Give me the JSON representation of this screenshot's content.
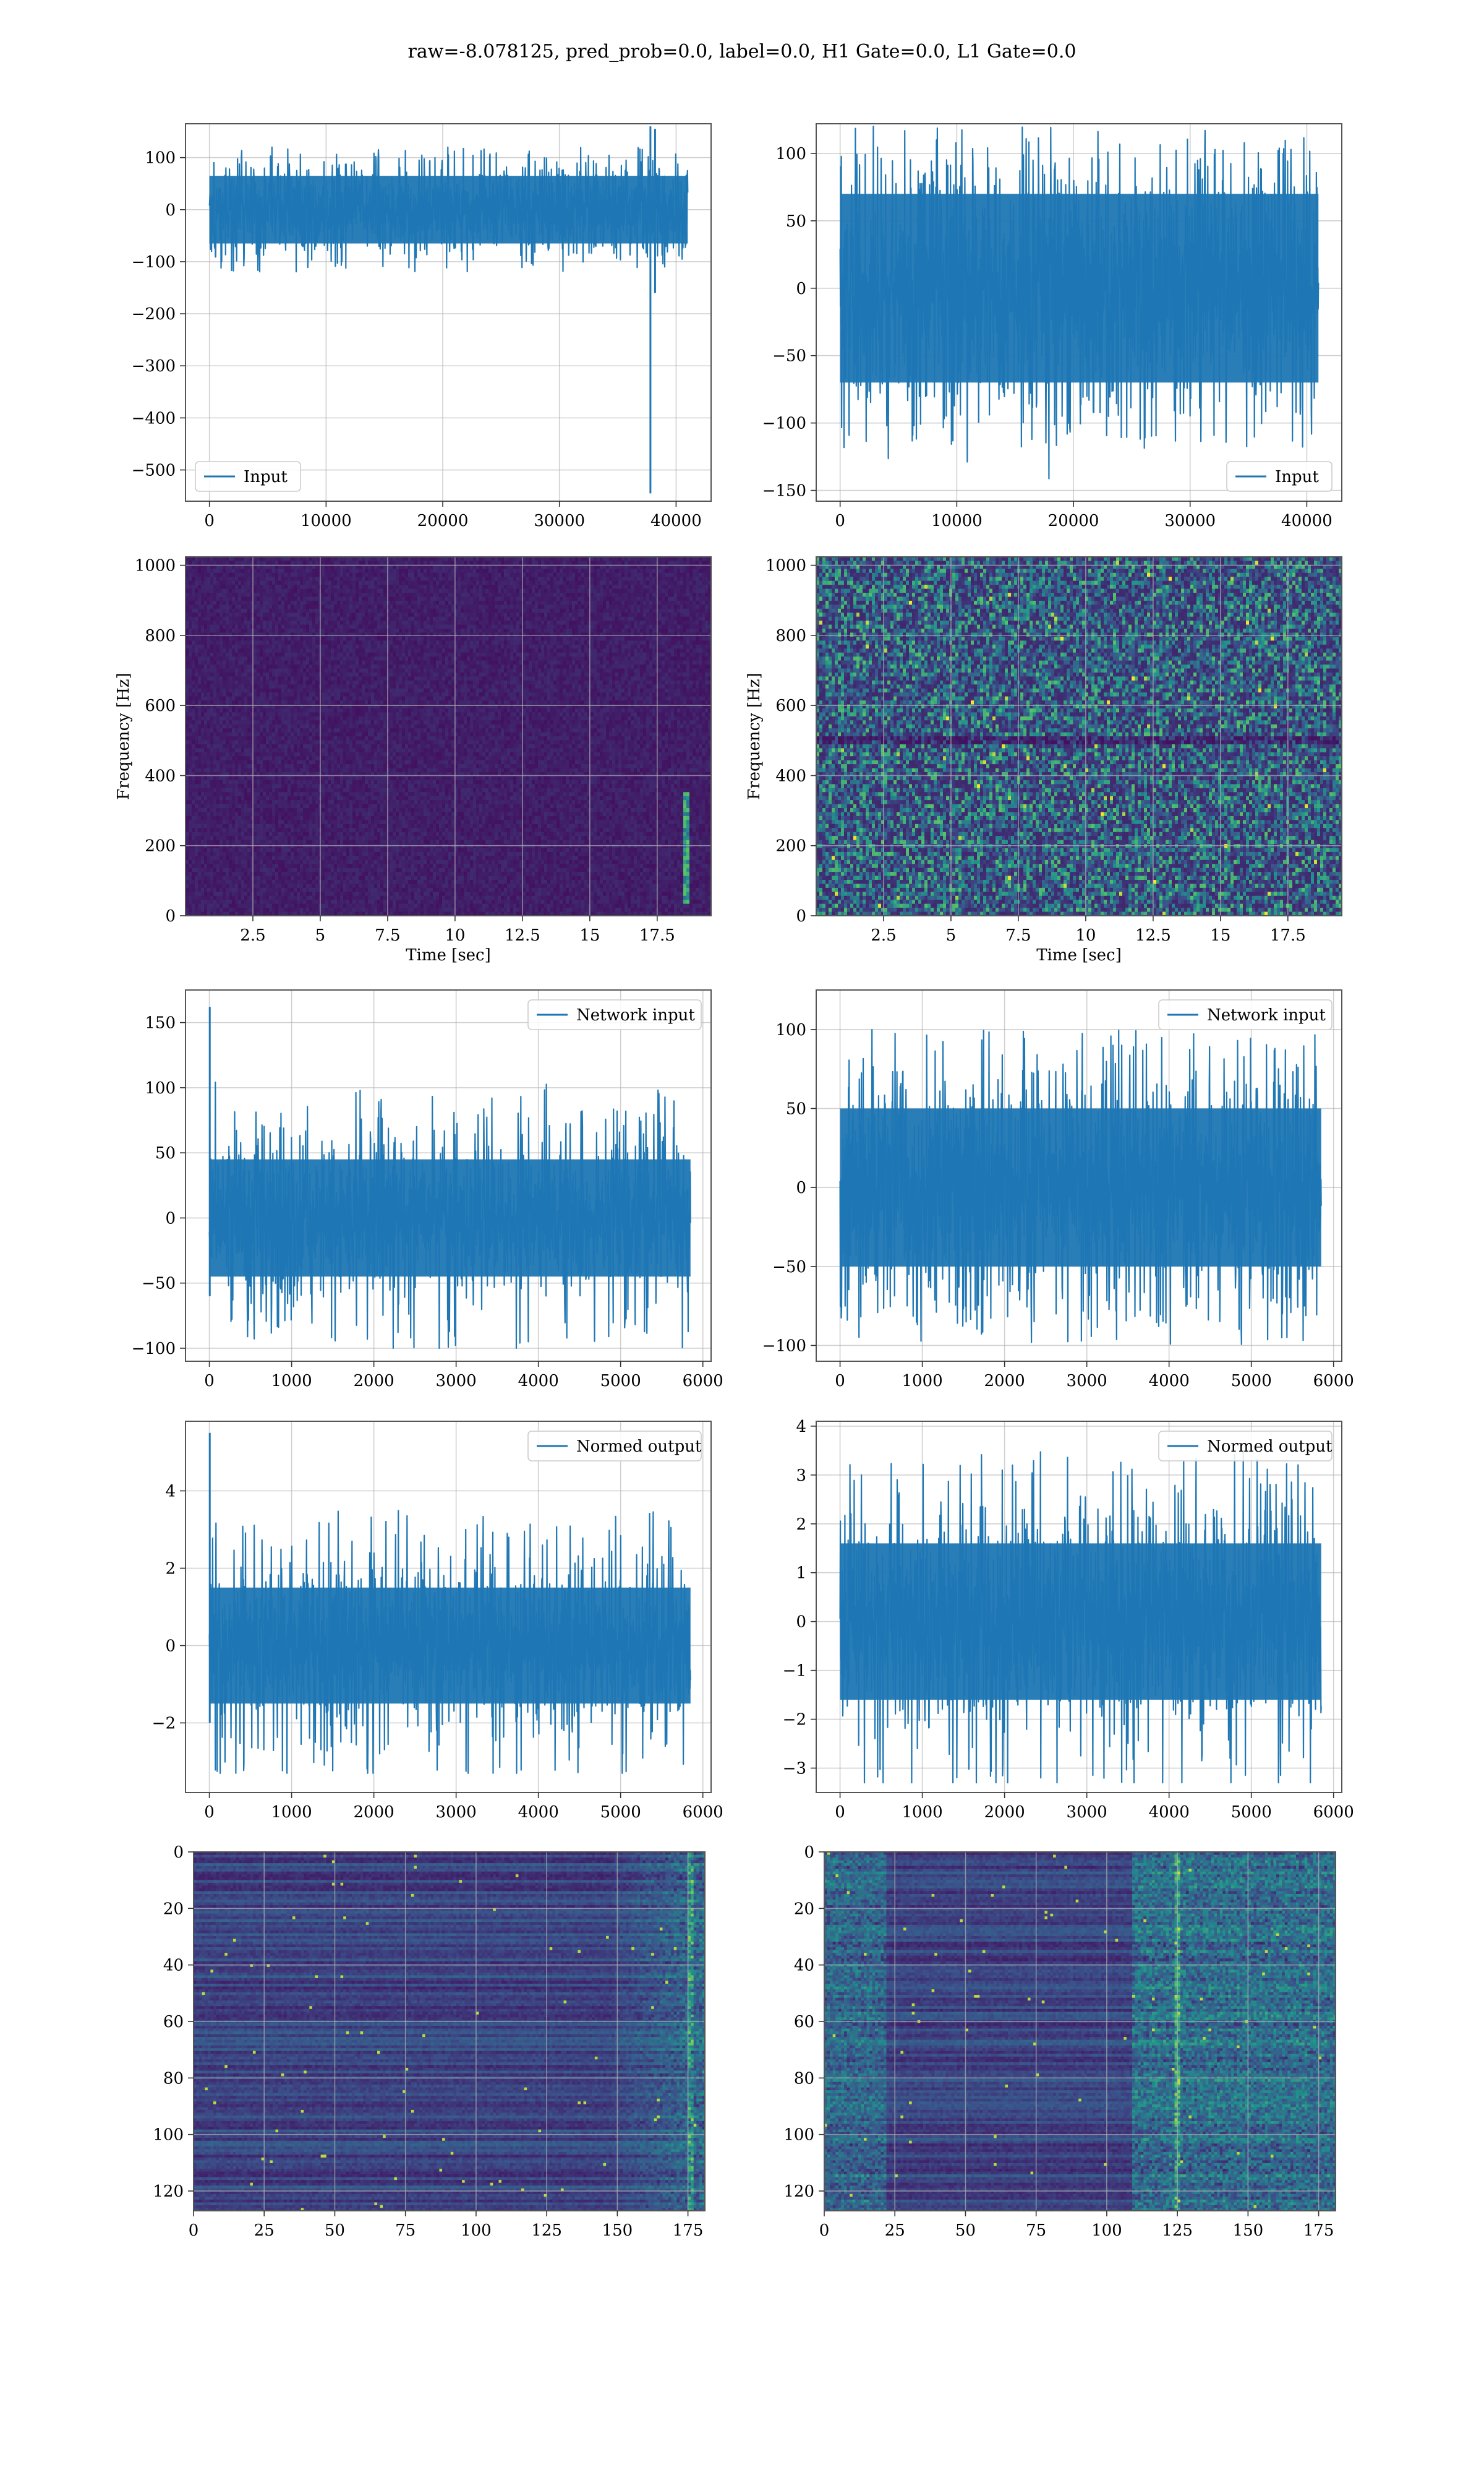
{
  "figure": {
    "title": "raw=-8.078125, pred_prob=0.0, label=0.0, H1 Gate=0.0, L1 Gate=0.0"
  },
  "colors": {
    "line": "#1f77b4",
    "grid": "#b0b0b0",
    "heat_low": "#440154",
    "heat_mid": "#21918c",
    "heat_high": "#fde725"
  },
  "chart_data": [
    {
      "id": "input-h1",
      "type": "line",
      "title": "",
      "xlabel": "",
      "ylabel": "",
      "xlim": [
        -2050,
        43000
      ],
      "ylim": [
        -560,
        165
      ],
      "xticks": [
        0,
        10000,
        20000,
        30000,
        40000
      ],
      "yticks": [
        100,
        0,
        -100,
        -200,
        -300,
        -400,
        -500
      ],
      "legend": {
        "label": "Input",
        "position": "lower-left"
      },
      "series": [
        {
          "name": "Input",
          "x_range": [
            0,
            41000
          ],
          "band": [
            -65,
            65
          ],
          "spikes_extreme": [
            120,
            -120
          ],
          "events": [
            {
              "x": 37800,
              "y_min": -545,
              "y_max": 160
            },
            {
              "x": 38200,
              "y_min": -160,
              "y_max": 155
            }
          ]
        }
      ],
      "grid": true
    },
    {
      "id": "input-l1",
      "type": "line",
      "title": "",
      "xlabel": "",
      "ylabel": "",
      "xlim": [
        -2050,
        43000
      ],
      "ylim": [
        -158,
        122
      ],
      "xticks": [
        0,
        10000,
        20000,
        30000,
        40000
      ],
      "yticks": [
        100,
        50,
        0,
        -50,
        -100,
        -150
      ],
      "legend": {
        "label": "Input",
        "position": "lower-right"
      },
      "series": [
        {
          "name": "Input",
          "x_range": [
            0,
            41000
          ],
          "band": [
            -70,
            70
          ],
          "spikes_extreme": [
            120,
            -145
          ],
          "events": []
        }
      ],
      "grid": true
    },
    {
      "id": "spectrogram-h1",
      "type": "heatmap",
      "title": "",
      "xlabel": "Time [sec]",
      "ylabel": "Frequency [Hz]",
      "xlim": [
        0,
        19.5
      ],
      "ylim": [
        0,
        1024
      ],
      "xticks": [
        2.5,
        5.0,
        7.5,
        10.0,
        12.5,
        15.0,
        17.5
      ],
      "yticks": [
        0,
        200,
        400,
        600,
        800,
        1000
      ],
      "colormap": "viridis",
      "intensity": "low",
      "bright_spot": {
        "time": 18.6,
        "freq_range": [
          30,
          350
        ]
      },
      "grid": true
    },
    {
      "id": "spectrogram-l1",
      "type": "heatmap",
      "title": "",
      "xlabel": "Time [sec]",
      "ylabel": "Frequency [Hz]",
      "xlim": [
        0,
        19.5
      ],
      "ylim": [
        0,
        1024
      ],
      "xticks": [
        2.5,
        5.0,
        7.5,
        10.0,
        12.5,
        15.0,
        17.5
      ],
      "yticks": [
        0,
        200,
        400,
        600,
        800,
        1000
      ],
      "colormap": "viridis",
      "intensity": "high",
      "bright_spot": null,
      "grid": true
    },
    {
      "id": "network-input-h1",
      "type": "line",
      "title": "",
      "xlabel": "",
      "ylabel": "",
      "xlim": [
        -290,
        6100
      ],
      "ylim": [
        -110,
        175
      ],
      "xticks": [
        0,
        1000,
        2000,
        3000,
        4000,
        5000,
        6000
      ],
      "yticks": [
        150,
        100,
        50,
        0,
        -50,
        -100
      ],
      "legend": {
        "label": "Network input",
        "position": "upper-right"
      },
      "series": [
        {
          "name": "Network input",
          "x_range": [
            0,
            5850
          ],
          "band": [
            -45,
            45
          ],
          "spikes_extreme": [
            105,
            -100
          ],
          "events": [
            {
              "x": 5,
              "y_min": -60,
              "y_max": 162
            }
          ]
        }
      ],
      "grid": true
    },
    {
      "id": "network-input-l1",
      "type": "line",
      "title": "",
      "xlabel": "",
      "ylabel": "",
      "xlim": [
        -290,
        6100
      ],
      "ylim": [
        -110,
        125
      ],
      "xticks": [
        0,
        1000,
        2000,
        3000,
        4000,
        5000,
        6000
      ],
      "yticks": [
        100,
        50,
        0,
        -50,
        -100
      ],
      "legend": {
        "label": "Network input",
        "position": "upper-right"
      },
      "series": [
        {
          "name": "Network input",
          "x_range": [
            0,
            5850
          ],
          "band": [
            -50,
            50
          ],
          "spikes_extreme": [
            100,
            -100
          ],
          "events": []
        }
      ],
      "grid": true
    },
    {
      "id": "normed-output-h1",
      "type": "line",
      "title": "",
      "xlabel": "",
      "ylabel": "",
      "xlim": [
        -290,
        6100
      ],
      "ylim": [
        -3.8,
        5.8
      ],
      "xticks": [
        0,
        1000,
        2000,
        3000,
        4000,
        5000,
        6000
      ],
      "yticks": [
        4,
        2,
        0,
        -2
      ],
      "legend": {
        "label": "Normed output",
        "position": "upper-right"
      },
      "series": [
        {
          "name": "Normed output",
          "x_range": [
            0,
            5850
          ],
          "band": [
            -1.5,
            1.5
          ],
          "spikes_extreme": [
            3.5,
            -3.3
          ],
          "events": [
            {
              "x": 5,
              "y_min": -2,
              "y_max": 5.5
            }
          ]
        }
      ],
      "grid": true
    },
    {
      "id": "normed-output-l1",
      "type": "line",
      "title": "",
      "xlabel": "",
      "ylabel": "",
      "xlim": [
        -290,
        6100
      ],
      "ylim": [
        -3.5,
        4.1
      ],
      "xticks": [
        0,
        1000,
        2000,
        3000,
        4000,
        5000,
        6000
      ],
      "yticks": [
        4,
        3,
        2,
        1,
        0,
        -1,
        -2,
        -3
      ],
      "legend": {
        "label": "Normed output",
        "position": "upper-right"
      },
      "series": [
        {
          "name": "Normed output",
          "x_range": [
            0,
            5850
          ],
          "band": [
            -1.6,
            1.6
          ],
          "spikes_extreme": [
            3.5,
            -3.3
          ],
          "events": []
        }
      ],
      "grid": true
    },
    {
      "id": "feature-map-h1",
      "type": "heatmap",
      "title": "",
      "xlabel": "",
      "ylabel": "",
      "xlim": [
        0,
        181
      ],
      "ylim": [
        127,
        0
      ],
      "xticks": [
        0,
        25,
        50,
        75,
        100,
        125,
        150,
        175
      ],
      "yticks": [
        0,
        20,
        40,
        60,
        80,
        100,
        120
      ],
      "colormap": "viridis",
      "active_region": "right",
      "bright_column": 175,
      "grid": true
    },
    {
      "id": "feature-map-l1",
      "type": "heatmap",
      "title": "",
      "xlabel": "",
      "ylabel": "",
      "xlim": [
        0,
        181
      ],
      "ylim": [
        127,
        0
      ],
      "xticks": [
        0,
        25,
        50,
        75,
        100,
        125,
        150,
        175
      ],
      "yticks": [
        0,
        20,
        40,
        60,
        80,
        100,
        120
      ],
      "colormap": "viridis",
      "active_region": "both",
      "bright_column": 124,
      "grid": true
    }
  ]
}
